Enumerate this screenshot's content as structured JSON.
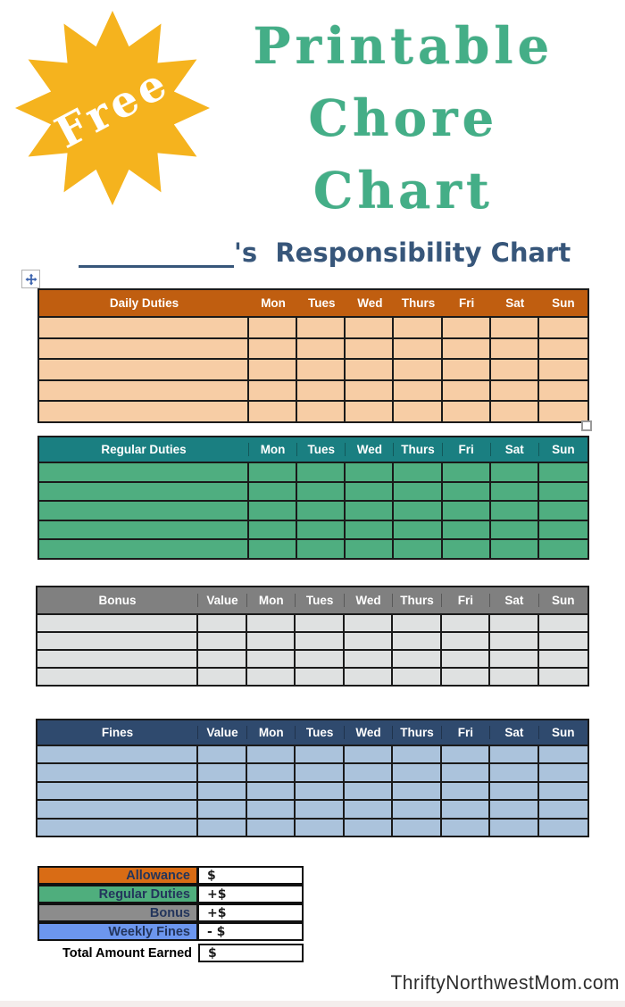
{
  "page": {
    "badge_text": "Free",
    "title_lines": [
      "Printable",
      "Chore",
      "Chart"
    ],
    "heading_suffix": "'s  Responsibility Chart",
    "watermark": "ThriftyNorthwestMom.com"
  },
  "colors": {
    "badge": "#F5B31E",
    "title": "#44AE87",
    "heading": "#37567A",
    "border": "#1A1A1A"
  },
  "days": [
    "Mon",
    "Tues",
    "Wed",
    "Thurs",
    "Fri",
    "Sat",
    "Sun"
  ],
  "tables": [
    {
      "id": "daily",
      "title": "Daily Duties",
      "value_label": null,
      "rows": 5,
      "header_bg": "#C05E10",
      "header_text": "#FFFFFF",
      "cell_bg": "#F7CDA5"
    },
    {
      "id": "regular",
      "title": "Regular Duties",
      "value_label": null,
      "rows": 5,
      "header_bg": "#1A7F81",
      "header_text": "#FFFFFF",
      "cell_bg": "#4FAE80"
    },
    {
      "id": "bonus",
      "title": "Bonus",
      "value_label": "Value",
      "rows": 4,
      "header_bg": "#808080",
      "header_text": "#FFFFFF",
      "cell_bg": "#DFE1E1"
    },
    {
      "id": "fines",
      "title": "Fines",
      "value_label": "Value",
      "rows": 5,
      "header_bg": "#2F4A6E",
      "header_text": "#FFFFFF",
      "cell_bg": "#ABC3DC"
    }
  ],
  "summary": {
    "rows": [
      {
        "label": "Allowance",
        "value": "$",
        "bg": "#D96C15",
        "text": "#23355C",
        "is_total": false
      },
      {
        "label": "Regular Duties",
        "value": "+$",
        "bg": "#4FAE7D",
        "text": "#23355C",
        "is_total": false
      },
      {
        "label": "Bonus",
        "value": "+$",
        "bg": "#8C8C8C",
        "text": "#23355C",
        "is_total": false
      },
      {
        "label": "Weekly Fines",
        "value": "- $",
        "bg": "#6C96EE",
        "text": "#23355C",
        "is_total": false
      },
      {
        "label": "Total Amount Earned",
        "value": "$",
        "bg": "#FFFFFF",
        "text": "#000000",
        "is_total": true
      }
    ]
  }
}
